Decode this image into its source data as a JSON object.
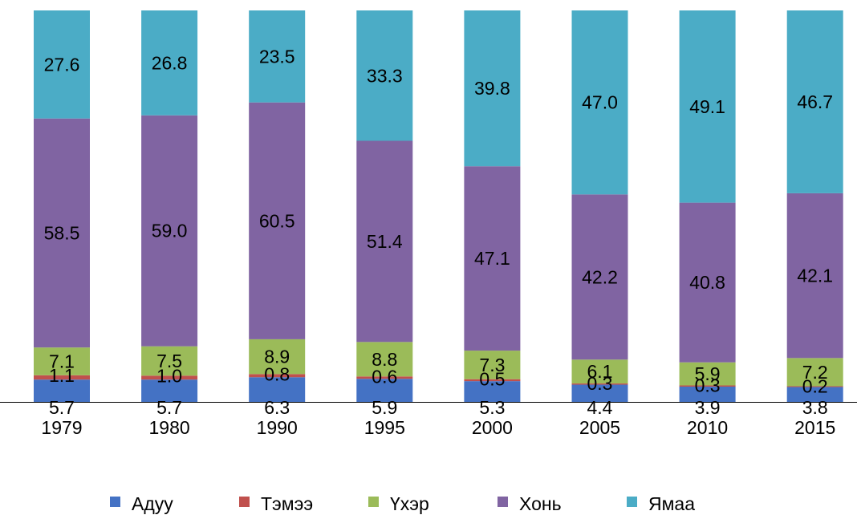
{
  "chart_data": {
    "type": "bar",
    "stacked": true,
    "percent_stacked": true,
    "categories": [
      "1979",
      "1980",
      "1990",
      "1995",
      "2000",
      "2005",
      "2010",
      "2015"
    ],
    "series": [
      {
        "name": "Адуу",
        "color": "#4472c4",
        "values": [
          5.7,
          5.7,
          6.3,
          5.9,
          5.3,
          4.4,
          3.9,
          3.8
        ]
      },
      {
        "name": "Тэмээ",
        "color": "#c0504d",
        "values": [
          1.1,
          1.0,
          0.8,
          0.6,
          0.5,
          0.3,
          0.3,
          0.2
        ]
      },
      {
        "name": "Үхэр",
        "color": "#9bbb59",
        "values": [
          7.1,
          7.5,
          8.9,
          8.8,
          7.3,
          6.1,
          5.9,
          7.2
        ]
      },
      {
        "name": "Хонь",
        "color": "#8064a2",
        "values": [
          58.5,
          59.0,
          60.5,
          51.4,
          47.1,
          42.2,
          40.8,
          42.1
        ]
      },
      {
        "name": "Ямаа",
        "color": "#4bacc6",
        "values": [
          27.6,
          26.8,
          23.5,
          33.3,
          39.8,
          47.0,
          49.1,
          46.7
        ]
      }
    ],
    "ylim": [
      0,
      100
    ],
    "grid": false,
    "legend_position": "bottom",
    "title": "",
    "xlabel": "",
    "ylabel": ""
  }
}
